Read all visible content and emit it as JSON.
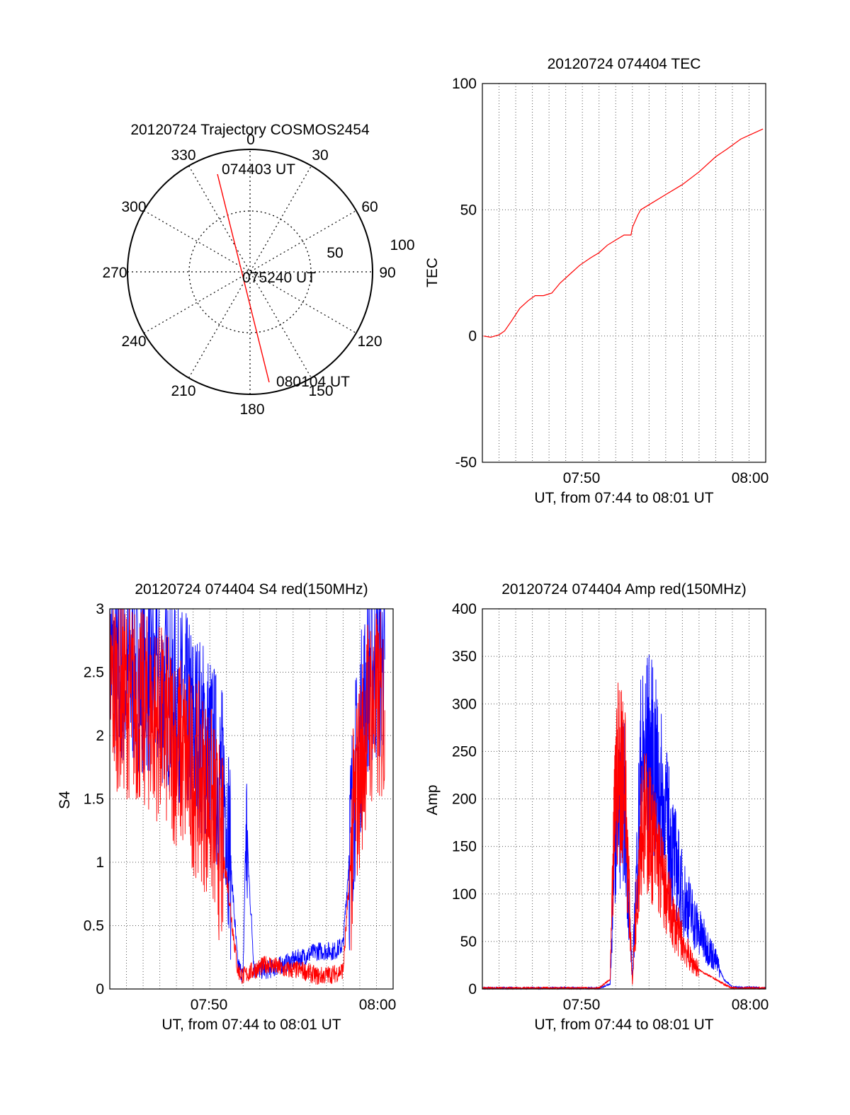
{
  "colors": {
    "red": "#ff0000",
    "blue": "#0000ff",
    "axis": "#000000",
    "grid": "#555555"
  },
  "chart_data": [
    {
      "id": "polar",
      "type": "scatter",
      "title": "20120724 Trajectory COSMOS2454",
      "azimuth_labels": [
        "0",
        "30",
        "60",
        "90",
        "120",
        "150",
        "180",
        "210",
        "240",
        "270",
        "300",
        "330"
      ],
      "radius_labels": [
        "50",
        "100"
      ],
      "time_labels": [
        "074403 UT",
        "075240 UT",
        "080104 UT"
      ],
      "track": {
        "start": {
          "az": 347,
          "el": 12
        },
        "end": {
          "az": 168,
          "el": 6
        },
        "mid_time": "075240 UT"
      },
      "grid": true
    },
    {
      "id": "tec",
      "type": "line",
      "title": "20120724 074404 TEC",
      "xlabel": "UT, from 07:44 to 08:01 UT",
      "ylabel": "TEC",
      "xlim": [
        "07:44",
        "08:01"
      ],
      "ylim": [
        -50,
        100
      ],
      "yticks": [
        "-50",
        "0",
        "50",
        "100"
      ],
      "xticks": [
        "07:50",
        "08:00"
      ],
      "grid": true,
      "series": [
        {
          "color": "#ff0000",
          "points": [
            [
              "07:44:04",
              0
            ],
            [
              "07:44:30",
              -0.5
            ],
            [
              "07:45:00",
              0.5
            ],
            [
              "07:45:20",
              2
            ],
            [
              "07:45:45",
              6
            ],
            [
              "07:46:15",
              11
            ],
            [
              "07:46:45",
              14
            ],
            [
              "07:47:10",
              16
            ],
            [
              "07:47:40",
              16
            ],
            [
              "07:48:10",
              17
            ],
            [
              "07:48:40",
              21
            ],
            [
              "07:49:20",
              25
            ],
            [
              "07:49:50",
              28
            ],
            [
              "07:50:30",
              31
            ],
            [
              "07:51:00",
              33
            ],
            [
              "07:51:30",
              36
            ],
            [
              "07:52:00",
              38
            ],
            [
              "07:52:30",
              40
            ],
            [
              "07:52:55",
              40
            ],
            [
              "07:53:00",
              43
            ],
            [
              "07:53:20",
              48
            ],
            [
              "07:53:30",
              50
            ],
            [
              "07:54:00",
              52
            ],
            [
              "07:55:00",
              56
            ],
            [
              "07:56:00",
              60
            ],
            [
              "07:57:00",
              65
            ],
            [
              "07:58:00",
              71
            ],
            [
              "07:58:40",
              74
            ],
            [
              "07:59:30",
              78
            ],
            [
              "08:00:10",
              80
            ],
            [
              "08:00:50",
              82
            ]
          ]
        }
      ]
    },
    {
      "id": "s4",
      "type": "line",
      "title": "20120724 074404 S4 red(150MHz)",
      "xlabel": "UT, from 07:44 to 08:01 UT",
      "ylabel": "S4",
      "xlim": [
        "07:44",
        "08:01"
      ],
      "ylim": [
        0,
        3
      ],
      "yticks": [
        "0",
        "0.5",
        "1",
        "1.5",
        "2",
        "2.5",
        "3"
      ],
      "xticks": [
        "07:50",
        "08:00"
      ],
      "grid": true,
      "series": [
        {
          "color": "#0000ff",
          "points": [
            [
              "07:44:00",
              2.6
            ],
            [
              "07:45:00",
              2.5
            ],
            [
              "07:46:00",
              2.5
            ],
            [
              "07:47:00",
              2.4
            ],
            [
              "07:48:00",
              2.3
            ],
            [
              "07:49:00",
              2.1
            ],
            [
              "07:50:00",
              1.9
            ],
            [
              "07:51:00",
              1.5
            ],
            [
              "07:51:40",
              0.2
            ],
            [
              "07:52:00",
              0.1
            ],
            [
              "07:52:10",
              1.3
            ],
            [
              "07:52:40",
              0.15
            ],
            [
              "07:53:30",
              0.15
            ],
            [
              "07:54:30",
              0.2
            ],
            [
              "07:55:30",
              0.25
            ],
            [
              "07:56:30",
              0.3
            ],
            [
              "07:57:30",
              0.3
            ],
            [
              "07:58:00",
              0.35
            ],
            [
              "07:58:40",
              1.6
            ],
            [
              "07:59:30",
              2.5
            ],
            [
              "08:00:30",
              2.6
            ]
          ]
        },
        {
          "color": "#ff0000",
          "points": [
            [
              "07:44:00",
              2.4
            ],
            [
              "07:45:00",
              2.3
            ],
            [
              "07:46:00",
              2.2
            ],
            [
              "07:47:00",
              2.1
            ],
            [
              "07:48:00",
              1.9
            ],
            [
              "07:49:00",
              1.7
            ],
            [
              "07:50:00",
              1.5
            ],
            [
              "07:51:00",
              0.9
            ],
            [
              "07:51:40",
              0.15
            ],
            [
              "07:52:00",
              0.1
            ],
            [
              "07:52:40",
              0.15
            ],
            [
              "07:53:30",
              0.2
            ],
            [
              "07:54:30",
              0.15
            ],
            [
              "07:55:30",
              0.15
            ],
            [
              "07:56:30",
              0.1
            ],
            [
              "07:57:30",
              0.12
            ],
            [
              "07:58:00",
              0.15
            ],
            [
              "07:58:40",
              1.4
            ],
            [
              "07:59:30",
              2.2
            ],
            [
              "08:00:30",
              2.2
            ]
          ]
        }
      ]
    },
    {
      "id": "amp",
      "type": "line",
      "title": "20120724 074404 Amp red(150MHz)",
      "xlabel": "UT, from 07:44 to 08:01 UT",
      "ylabel": "Amp",
      "xlim": [
        "07:44",
        "08:01"
      ],
      "ylim": [
        0,
        400
      ],
      "yticks": [
        "0",
        "50",
        "100",
        "150",
        "200",
        "250",
        "300",
        "350",
        "400"
      ],
      "xticks": [
        "07:50",
        "08:00"
      ],
      "grid": true,
      "series": [
        {
          "color": "#0000ff",
          "points": [
            [
              "07:44:00",
              1
            ],
            [
              "07:51:00",
              1
            ],
            [
              "07:51:40",
              5
            ],
            [
              "07:52:00",
              180
            ],
            [
              "07:52:30",
              200
            ],
            [
              "07:53:00",
              10
            ],
            [
              "07:53:30",
              230
            ],
            [
              "07:54:00",
              250
            ],
            [
              "07:54:30",
              220
            ],
            [
              "07:55:00",
              180
            ],
            [
              "07:55:30",
              140
            ],
            [
              "07:56:00",
              100
            ],
            [
              "07:56:30",
              80
            ],
            [
              "07:57:00",
              60
            ],
            [
              "07:57:30",
              45
            ],
            [
              "07:58:00",
              30
            ],
            [
              "07:58:30",
              10
            ],
            [
              "07:59:00",
              2
            ],
            [
              "08:01:00",
              1
            ]
          ]
        },
        {
          "color": "#ff0000",
          "points": [
            [
              "07:44:00",
              1
            ],
            [
              "07:51:00",
              1
            ],
            [
              "07:51:40",
              10
            ],
            [
              "07:52:00",
              220
            ],
            [
              "07:52:30",
              240
            ],
            [
              "07:53:00",
              5
            ],
            [
              "07:53:30",
              180
            ],
            [
              "07:54:00",
              170
            ],
            [
              "07:54:30",
              140
            ],
            [
              "07:55:00",
              100
            ],
            [
              "07:55:30",
              70
            ],
            [
              "07:56:00",
              50
            ],
            [
              "07:56:30",
              30
            ],
            [
              "07:57:00",
              20
            ],
            [
              "07:57:30",
              15
            ],
            [
              "07:58:00",
              10
            ],
            [
              "07:58:30",
              5
            ],
            [
              "07:59:00",
              1
            ],
            [
              "08:01:00",
              1
            ]
          ]
        }
      ]
    }
  ]
}
